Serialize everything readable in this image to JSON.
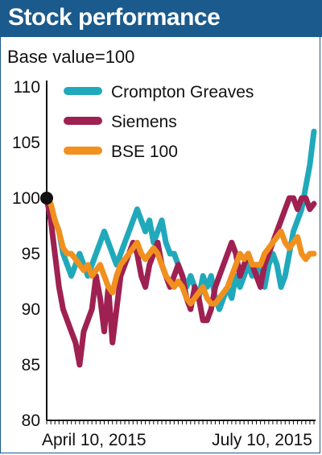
{
  "title": "Stock performance",
  "subtitle": "Base value=100",
  "colors": {
    "header_bg": "#1a5a8c",
    "crompton": "#20a9bb",
    "siemens": "#9e2151",
    "bse": "#f1901e",
    "base_marker": "#111111"
  },
  "chart_data": {
    "type": "line",
    "ylim": [
      80,
      110
    ],
    "y_ticks": [
      "110",
      "105",
      "100",
      "95",
      "90",
      "85",
      "80"
    ],
    "x_tick_labels": [
      "April 10, 2015",
      "July 10, 2015"
    ],
    "x_range": [
      0,
      65
    ],
    "legend_position": "top-right",
    "series": [
      {
        "name": "Crompton Greaves",
        "color": "#20a9bb",
        "x": [
          0,
          1,
          2,
          3,
          4,
          5,
          6,
          7,
          8,
          9,
          10,
          11,
          12,
          13,
          14,
          15,
          16,
          17,
          18,
          19,
          20,
          21,
          22,
          23,
          24,
          25,
          26,
          27,
          28,
          29,
          30,
          31,
          32,
          33,
          34,
          35,
          36,
          37,
          38,
          39,
          40,
          41,
          42,
          43,
          44,
          45,
          46,
          47,
          48,
          49,
          50,
          51,
          52,
          53,
          54,
          55,
          56,
          57,
          58,
          59,
          60,
          61,
          62,
          63,
          64,
          65
        ],
        "values": [
          100,
          99,
          98,
          97,
          95,
          94,
          93,
          94,
          95,
          94,
          93,
          94,
          95,
          96,
          97,
          96,
          95,
          94,
          95,
          96,
          97,
          98,
          99,
          98,
          97,
          98,
          96,
          97,
          98,
          96,
          95,
          95,
          94,
          93,
          92,
          93,
          92,
          91,
          93,
          92,
          93,
          91,
          90,
          91,
          92,
          91,
          93,
          92,
          93,
          94,
          93,
          94,
          93,
          92,
          94,
          95,
          94,
          92,
          93,
          95,
          97,
          98,
          99,
          101,
          103,
          106
        ]
      },
      {
        "name": "Siemens",
        "color": "#9e2151",
        "x": [
          0,
          1,
          2,
          3,
          4,
          5,
          6,
          7,
          8,
          9,
          10,
          11,
          12,
          13,
          14,
          15,
          16,
          17,
          18,
          19,
          20,
          21,
          22,
          23,
          24,
          25,
          26,
          27,
          28,
          29,
          30,
          31,
          32,
          33,
          34,
          35,
          36,
          37,
          38,
          39,
          40,
          41,
          42,
          43,
          44,
          45,
          46,
          47,
          48,
          49,
          50,
          51,
          52,
          53,
          54,
          55,
          56,
          57,
          58,
          59,
          60,
          61,
          62,
          63,
          64,
          65
        ],
        "values": [
          100,
          98,
          95,
          92,
          90,
          89,
          88,
          87,
          85,
          88,
          89,
          90,
          93,
          91,
          88,
          92,
          87,
          90,
          93,
          94,
          95,
          96,
          95,
          93,
          92,
          94,
          95,
          96,
          94,
          93,
          92,
          93,
          94,
          93,
          91,
          90,
          92,
          91,
          89,
          89,
          90,
          92,
          93,
          94,
          95,
          96,
          95,
          93,
          94,
          95,
          94,
          93,
          92,
          94,
          95,
          96,
          97,
          98,
          99,
          100,
          100,
          99,
          100,
          100,
          99,
          99.5
        ]
      },
      {
        "name": "BSE 100",
        "color": "#f1901e",
        "x": [
          0,
          1,
          2,
          3,
          4,
          5,
          6,
          7,
          8,
          9,
          10,
          11,
          12,
          13,
          14,
          15,
          16,
          17,
          18,
          19,
          20,
          21,
          22,
          23,
          24,
          25,
          26,
          27,
          28,
          29,
          30,
          31,
          32,
          33,
          34,
          35,
          36,
          37,
          38,
          39,
          40,
          41,
          42,
          43,
          44,
          45,
          46,
          47,
          48,
          49,
          50,
          51,
          52,
          53,
          54,
          55,
          56,
          57,
          58,
          59,
          60,
          61,
          62,
          63,
          64,
          65
        ],
        "values": [
          100,
          99.5,
          98,
          97,
          95.5,
          95,
          95,
          94.5,
          94,
          93.5,
          94,
          93,
          93.5,
          94,
          93,
          92,
          91.5,
          93,
          94,
          94.5,
          95,
          95.5,
          96,
          95,
          94.5,
          95,
          95.5,
          95,
          94,
          93,
          92.5,
          92,
          92.5,
          92,
          91,
          90.5,
          91,
          91.5,
          92,
          91,
          90.5,
          90.5,
          91,
          91.5,
          92,
          93,
          94,
          95,
          94.5,
          95,
          94,
          94,
          94,
          95,
          95.5,
          96,
          96.5,
          97,
          96,
          95.5,
          96,
          96.5,
          95,
          94.5,
          95,
          95
        ]
      }
    ]
  }
}
